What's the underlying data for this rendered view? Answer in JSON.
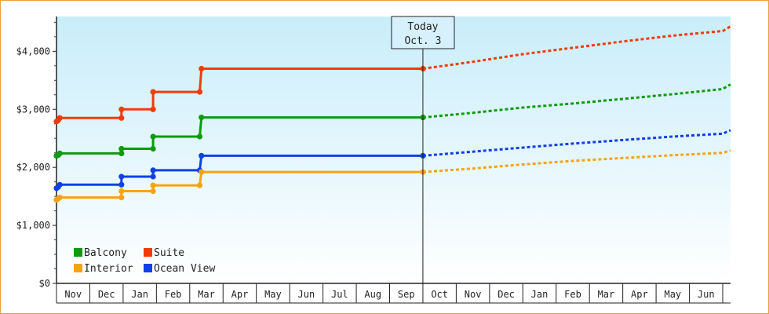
{
  "chart_data": {
    "type": "line",
    "title": "",
    "xlabel": "",
    "ylabel": "",
    "y_range": [
      0,
      4600
    ],
    "y_ticks": [
      0,
      1000,
      2000,
      3000,
      4000
    ],
    "y_tick_labels": [
      "$0",
      "$1,000",
      "$2,000",
      "$3,000",
      "$4,000"
    ],
    "x_axis_months": [
      "Nov",
      "Dec",
      "Jan",
      "Feb",
      "Mar",
      "Apr",
      "May",
      "Jun",
      "Jul",
      "Aug",
      "Sep",
      "Oct",
      "Nov",
      "Dec",
      "Jan",
      "Feb",
      "Mar",
      "Apr",
      "May",
      "Jun"
    ],
    "today_marker": {
      "line1": "Today",
      "line2": "Oct. 3",
      "month_index": 11
    },
    "line_style": "step",
    "series": [
      {
        "name": "Suite",
        "color": "#f03c0a",
        "points": [
          [
            0.0,
            2790
          ],
          [
            0.05,
            2810
          ],
          [
            0.1,
            2850
          ],
          [
            1.95,
            2850
          ],
          [
            1.95,
            3000
          ],
          [
            2.9,
            3000
          ],
          [
            2.9,
            3300
          ],
          [
            4.3,
            3300
          ],
          [
            4.35,
            3700
          ],
          [
            11.0,
            3700
          ]
        ],
        "forecast": [
          [
            11.0,
            3700
          ],
          [
            12.5,
            3820
          ],
          [
            14.0,
            3950
          ],
          [
            15.5,
            4060
          ],
          [
            17.0,
            4170
          ],
          [
            18.5,
            4270
          ],
          [
            20.0,
            4350
          ],
          [
            21.0,
            4430
          ]
        ]
      },
      {
        "name": "Balcony",
        "color": "#0f9a0f",
        "points": [
          [
            0.0,
            2200
          ],
          [
            0.05,
            2210
          ],
          [
            0.1,
            2240
          ],
          [
            1.95,
            2240
          ],
          [
            1.95,
            2320
          ],
          [
            2.9,
            2320
          ],
          [
            2.9,
            2530
          ],
          [
            4.3,
            2530
          ],
          [
            4.35,
            2860
          ],
          [
            11.0,
            2860
          ]
        ],
        "forecast": [
          [
            11.0,
            2860
          ],
          [
            12.5,
            2940
          ],
          [
            14.0,
            3030
          ],
          [
            15.5,
            3100
          ],
          [
            17.0,
            3180
          ],
          [
            18.5,
            3260
          ],
          [
            20.0,
            3350
          ],
          [
            21.0,
            3430
          ]
        ]
      },
      {
        "name": "Ocean View",
        "color": "#1040e8",
        "points": [
          [
            0.0,
            1640
          ],
          [
            0.05,
            1660
          ],
          [
            0.1,
            1700
          ],
          [
            1.95,
            1700
          ],
          [
            1.95,
            1840
          ],
          [
            2.9,
            1840
          ],
          [
            2.9,
            1950
          ],
          [
            4.3,
            1950
          ],
          [
            4.35,
            2200
          ],
          [
            11.0,
            2200
          ]
        ],
        "forecast": [
          [
            11.0,
            2200
          ],
          [
            12.5,
            2270
          ],
          [
            14.0,
            2340
          ],
          [
            15.5,
            2410
          ],
          [
            17.0,
            2470
          ],
          [
            18.5,
            2530
          ],
          [
            20.0,
            2580
          ],
          [
            21.0,
            2640
          ]
        ]
      },
      {
        "name": "Interior",
        "color": "#f3a413",
        "points": [
          [
            0.0,
            1440
          ],
          [
            0.05,
            1460
          ],
          [
            0.1,
            1480
          ],
          [
            1.95,
            1480
          ],
          [
            1.95,
            1590
          ],
          [
            2.9,
            1590
          ],
          [
            2.9,
            1690
          ],
          [
            4.3,
            1690
          ],
          [
            4.35,
            1920
          ],
          [
            11.0,
            1920
          ]
        ],
        "forecast": [
          [
            11.0,
            1920
          ],
          [
            12.5,
            1980
          ],
          [
            14.0,
            2050
          ],
          [
            15.5,
            2110
          ],
          [
            17.0,
            2160
          ],
          [
            18.5,
            2210
          ],
          [
            20.0,
            2250
          ],
          [
            21.0,
            2290
          ]
        ]
      }
    ],
    "legend": {
      "position": "bottom-left",
      "items": [
        {
          "label": "Balcony",
          "color": "#0f9a0f"
        },
        {
          "label": "Suite",
          "color": "#f03c0a"
        },
        {
          "label": "Interior",
          "color": "#f3a413"
        },
        {
          "label": "Ocean View",
          "color": "#1040e8"
        }
      ]
    },
    "plot_background": {
      "top_color": "#c9edfa",
      "bottom_color": "#ffffff"
    }
  }
}
